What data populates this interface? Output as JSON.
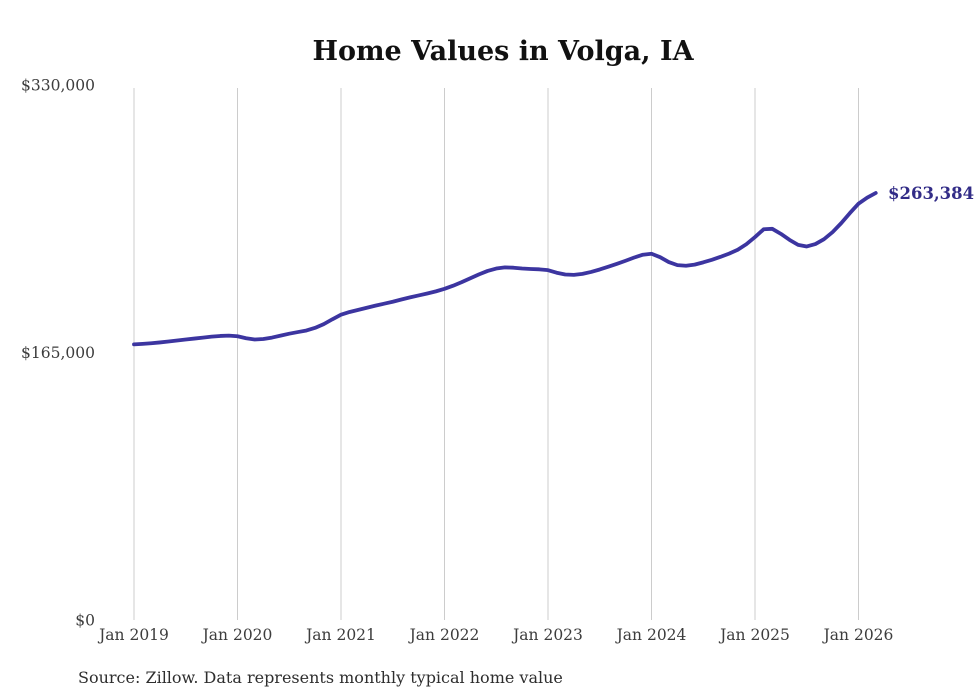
{
  "title": "Home Values in Volga, IA",
  "source_note": "Source: Zillow. Data represents monthly typical home value",
  "end_label": "$263,384",
  "colors": {
    "line": "#3c35a0",
    "label": "#322c87",
    "grid": "#cccccc",
    "axis_text": "#3d3d3d",
    "title_text": "#111111",
    "source_text": "#2e2e2e"
  },
  "chart_data": {
    "type": "line",
    "title": "Home Values in Volga, IA",
    "xlabel": "",
    "ylabel": "",
    "ylim": [
      0,
      330000
    ],
    "y_tick_labels": [
      "$0",
      "$165,000",
      "$330,000"
    ],
    "y_tick_values": [
      0,
      165000,
      330000
    ],
    "x_tick_labels": [
      "Jan 2019",
      "Jan 2020",
      "Jan 2021",
      "Jan 2022",
      "Jan 2023",
      "Jan 2024",
      "Jan 2025",
      "Jan 2026"
    ],
    "grid": "vertical-only",
    "legend": "none",
    "start_month": "2019-01",
    "end_month": "2026-03",
    "latest_value": 263384,
    "series": [
      {
        "name": "Monthly typical home value ($)",
        "monthly_values": [
          170000,
          170300,
          170700,
          171200,
          171800,
          172400,
          173000,
          173600,
          174200,
          174800,
          175200,
          175400,
          175000,
          173800,
          173000,
          173300,
          174200,
          175400,
          176600,
          177600,
          178600,
          180200,
          182500,
          185500,
          188300,
          190000,
          191300,
          192600,
          193900,
          195100,
          196300,
          197700,
          199000,
          200200,
          201400,
          202700,
          204300,
          206200,
          208400,
          210800,
          213200,
          215300,
          216800,
          217500,
          217300,
          216800,
          216500,
          216300,
          215800,
          214200,
          213100,
          212900,
          213500,
          214700,
          216200,
          217900,
          219700,
          221600,
          223600,
          225300,
          225900,
          223800,
          220800,
          218900,
          218500,
          219200,
          220600,
          222200,
          224000,
          226000,
          228400,
          231800,
          236200,
          241000,
          241300,
          238200,
          234500,
          231400,
          230400,
          231900,
          234900,
          239300,
          244800,
          251000,
          256800,
          260500,
          263384
        ]
      }
    ]
  }
}
